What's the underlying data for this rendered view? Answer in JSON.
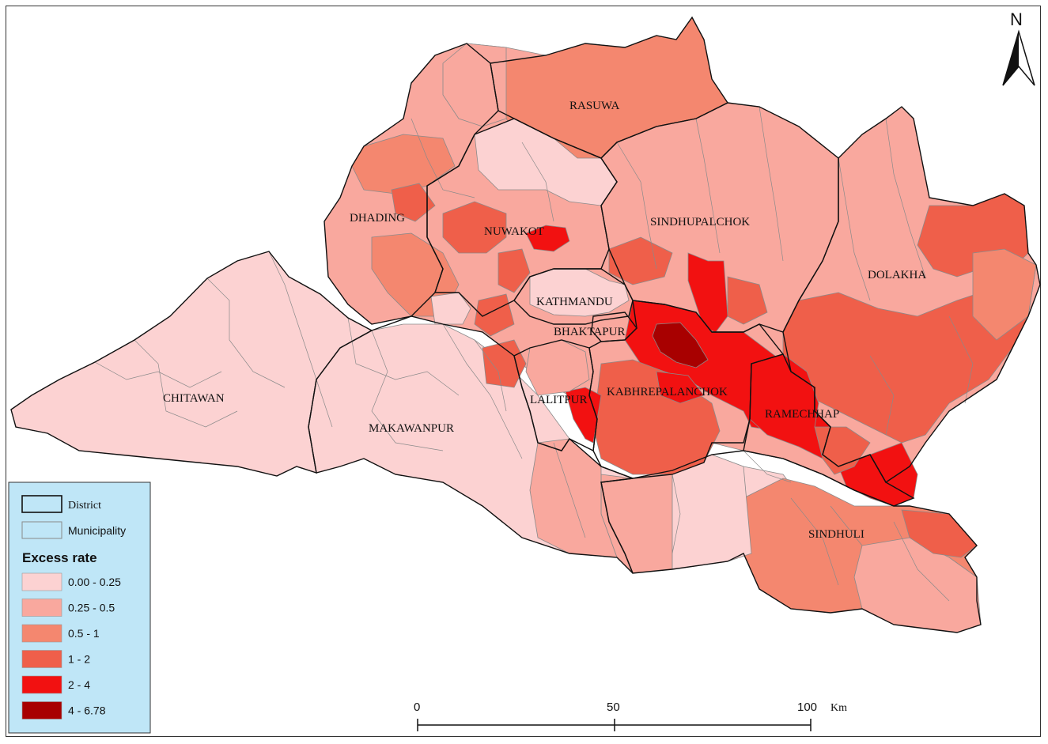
{
  "districts": [
    {
      "name": "RASUWA"
    },
    {
      "name": "DHADING"
    },
    {
      "name": "NUWAKOT"
    },
    {
      "name": "SINDHUPALCHOK"
    },
    {
      "name": "DOLAKHA"
    },
    {
      "name": "KATHMANDU"
    },
    {
      "name": "BHAKTAPUR"
    },
    {
      "name": "CHITAWAN"
    },
    {
      "name": "MAKAWANPUR"
    },
    {
      "name": "LALITPUR"
    },
    {
      "name": "KABHREPALANCHOK"
    },
    {
      "name": "RAMECHHAP"
    },
    {
      "name": "SINDHULI"
    }
  ],
  "legend": {
    "district_label": "District",
    "municipality_label": "Municipality",
    "title": "Excess rate",
    "classes": [
      {
        "label": "0.00 - 0.25",
        "color": "#fcd2d2"
      },
      {
        "label": "0.25 - 0.5",
        "color": "#f9a89e"
      },
      {
        "label": "0.5 - 1",
        "color": "#f4876f"
      },
      {
        "label": "1 - 2",
        "color": "#ef5f4a"
      },
      {
        "label": "2 - 4",
        "color": "#f21111"
      },
      {
        "label": "4 - 6.78",
        "color": "#a80000"
      }
    ],
    "background": "#bfe6f7"
  },
  "scale_bar": {
    "ticks": [
      "0",
      "50",
      "100"
    ],
    "unit": "Km"
  },
  "north_arrow": {
    "label": "N"
  }
}
